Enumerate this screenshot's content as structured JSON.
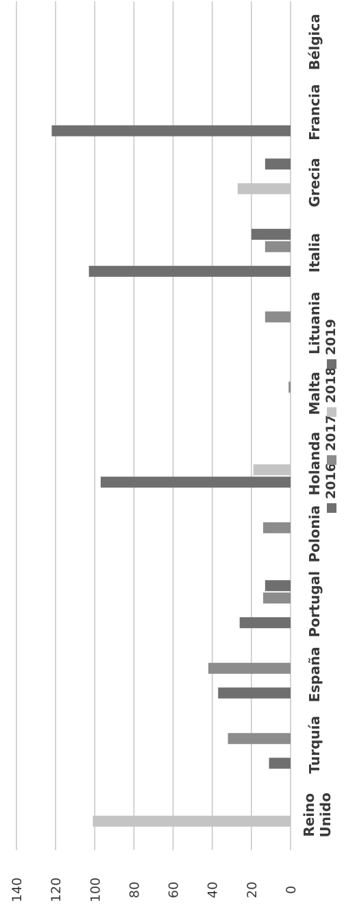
{
  "chart_data": {
    "type": "bar",
    "orientation": "horizontal",
    "categories": [
      "Bélgica",
      "Francia",
      "Grecia",
      "Italia",
      "Lituania",
      "Malta",
      "Holanda",
      "Polonia",
      "Portugal",
      "España",
      "Turquía",
      "Reino Unido"
    ],
    "category_label_lines": [
      [
        "Bélgica"
      ],
      [
        "Francia"
      ],
      [
        "Grecia"
      ],
      [
        "Italia"
      ],
      [
        "Lituania"
      ],
      [
        "Malta"
      ],
      [
        "Holanda"
      ],
      [
        "Polonia"
      ],
      [
        "Portugal"
      ],
      [
        "España"
      ],
      [
        "Turquía"
      ],
      [
        "Reino",
        "Unido"
      ]
    ],
    "series": [
      {
        "name": "2016",
        "color": "#6f6f6f",
        "values": [
          0,
          0,
          13,
          20,
          0,
          0,
          0,
          0,
          13,
          0,
          0,
          0
        ]
      },
      {
        "name": "2017",
        "color": "#8c8c8c",
        "values": [
          0,
          0,
          0,
          13,
          13,
          1,
          0,
          14,
          14,
          42,
          32,
          0
        ]
      },
      {
        "name": "2018",
        "color": "#c4c4c4",
        "values": [
          0,
          0,
          27,
          0,
          0,
          0,
          19,
          0,
          0,
          0,
          0,
          101
        ]
      },
      {
        "name": "2019",
        "color": "#6f6f6f",
        "values": [
          0,
          122,
          0,
          103,
          0,
          0,
          97,
          0,
          26,
          37,
          11,
          0
        ]
      }
    ],
    "value_axis": {
      "min": 0,
      "max": 140,
      "step": 20,
      "ticks": [
        "0",
        "20",
        "40",
        "60",
        "80",
        "100",
        "120",
        "140"
      ]
    },
    "grid": true,
    "legend_position": "bottom",
    "title": "",
    "xlabel": "",
    "ylabel": ""
  }
}
